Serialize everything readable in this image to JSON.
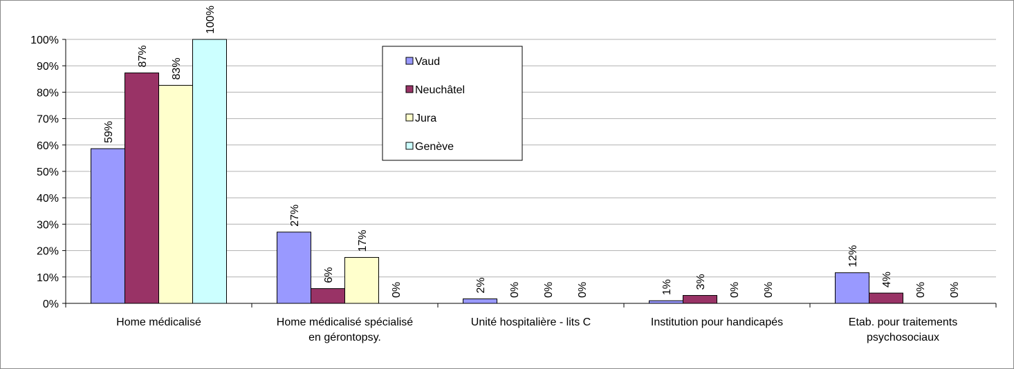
{
  "chart_data": {
    "type": "bar",
    "categories": [
      [
        "Home médicalisé"
      ],
      [
        "Home médicalisé spécialisé",
        "en gérontopsy."
      ],
      [
        "Unité hospitalière - lits C"
      ],
      [
        "Institution pour handicapés"
      ],
      [
        "Etab. pour traitements",
        "psychosociaux"
      ]
    ],
    "series": [
      {
        "name": "Vaud",
        "color": "#9999ff",
        "values": [
          58.6,
          27,
          1.7,
          1.0,
          11.6
        ],
        "value_labels": [
          "59%",
          "27%",
          "2%",
          "1%",
          "12%"
        ]
      },
      {
        "name": "Neuchâtel",
        "color": "#993366",
        "values": [
          87.3,
          5.6,
          0,
          3.0,
          3.9
        ],
        "value_labels": [
          "87%",
          "6%",
          "0%",
          "3%",
          "4%"
        ]
      },
      {
        "name": "Jura",
        "color": "#ffffcc",
        "values": [
          82.6,
          17.4,
          0,
          0,
          0
        ],
        "value_labels": [
          "83%",
          "17%",
          "0%",
          "0%",
          "0%"
        ]
      },
      {
        "name": "Genève",
        "color": "#ccffff",
        "values": [
          100,
          0,
          0,
          0,
          0
        ],
        "value_labels": [
          "100%",
          "0%",
          "0%",
          "0%",
          "0%"
        ]
      }
    ],
    "ylim": [
      0,
      100
    ],
    "yticks": [
      {
        "value": 0,
        "label": "0%"
      },
      {
        "value": 10,
        "label": "10%"
      },
      {
        "value": 20,
        "label": "20%"
      },
      {
        "value": 30,
        "label": "30%"
      },
      {
        "value": 40,
        "label": "40%"
      },
      {
        "value": 50,
        "label": "50%"
      },
      {
        "value": 60,
        "label": "60%"
      },
      {
        "value": 70,
        "label": "70%"
      },
      {
        "value": 80,
        "label": "80%"
      },
      {
        "value": 90,
        "label": "90%"
      },
      {
        "value": 100,
        "label": "100%"
      }
    ],
    "grid": true,
    "legend": "top"
  }
}
